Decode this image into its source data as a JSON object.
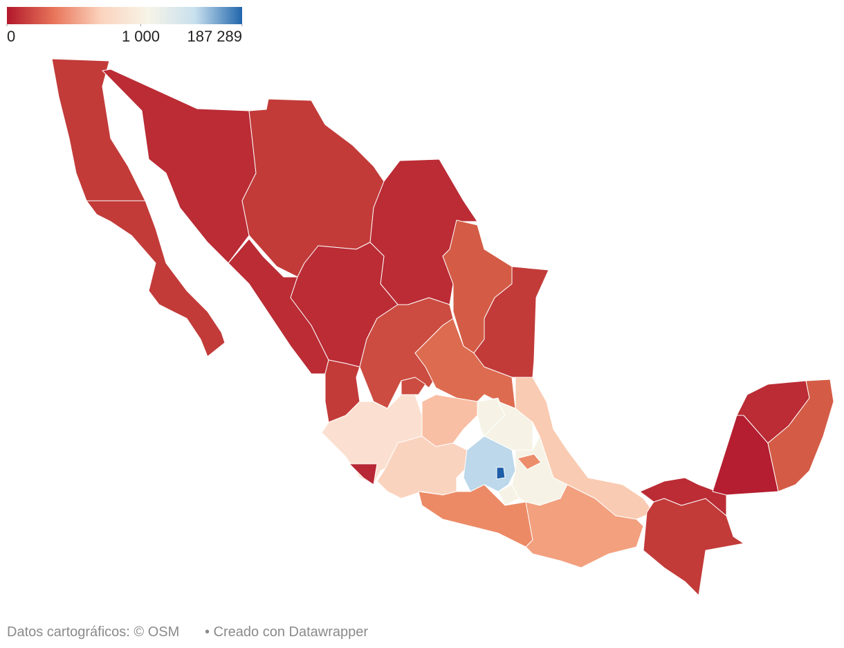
{
  "legend": {
    "ticks": [
      0,
      {
        "value": 1000,
        "label": "1 000"
      },
      {
        "value": 187289,
        "label": "187 289"
      }
    ],
    "colors": [
      "#b2182b",
      "#e8755a",
      "#fbd3bd",
      "#f7f4e8",
      "#c8e0ee",
      "#2166ac"
    ]
  },
  "footer": {
    "source": "Datos cartográficos: © OSM",
    "credit": "• Creado con Datawrapper"
  }
}
